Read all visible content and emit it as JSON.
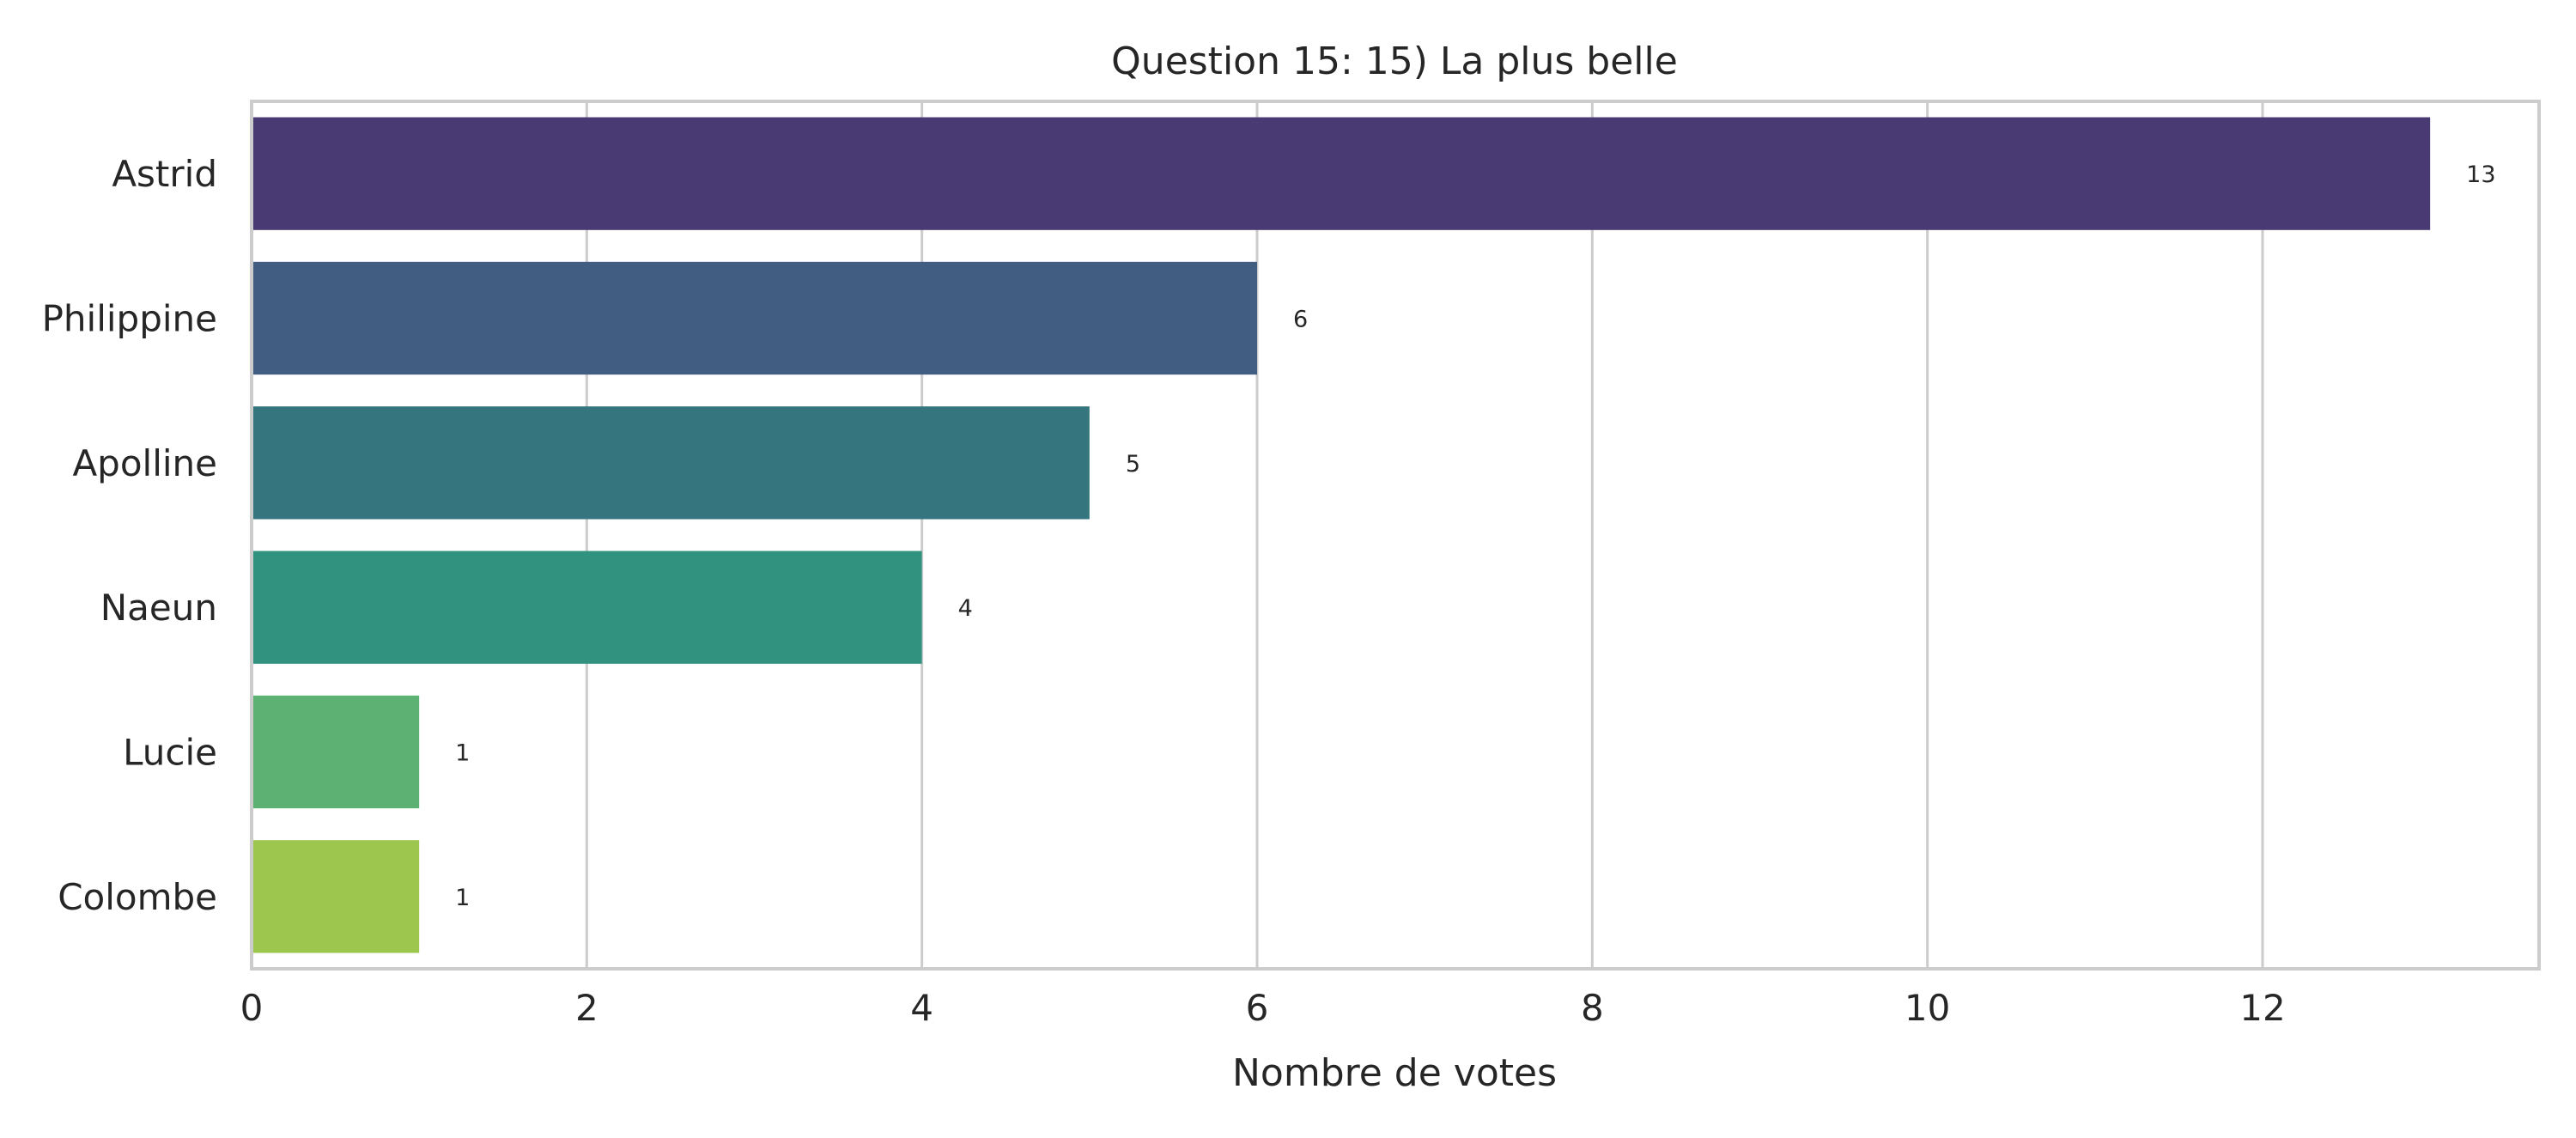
{
  "chart_data": {
    "type": "bar",
    "orientation": "horizontal",
    "title": "Question 15: 15) La plus belle",
    "xlabel": "Nombre de votes",
    "ylabel": "",
    "categories": [
      "Astrid",
      "Philippine",
      "Apolline",
      "Naeun",
      "Lucie",
      "Colombe"
    ],
    "values": [
      13,
      6,
      5,
      4,
      1,
      1
    ],
    "value_labels": [
      "13",
      "6",
      "5",
      "4",
      "1",
      "1"
    ],
    "xlim": [
      0,
      13.65
    ],
    "xticks": [
      0,
      2,
      4,
      6,
      8,
      10,
      12
    ],
    "xtick_labels": [
      "0",
      "2",
      "4",
      "6",
      "8",
      "10",
      "12"
    ],
    "grid": true,
    "colors": [
      "#4a3a74",
      "#415e82",
      "#35767e",
      "#31927f",
      "#5db273",
      "#9dc64e"
    ]
  }
}
